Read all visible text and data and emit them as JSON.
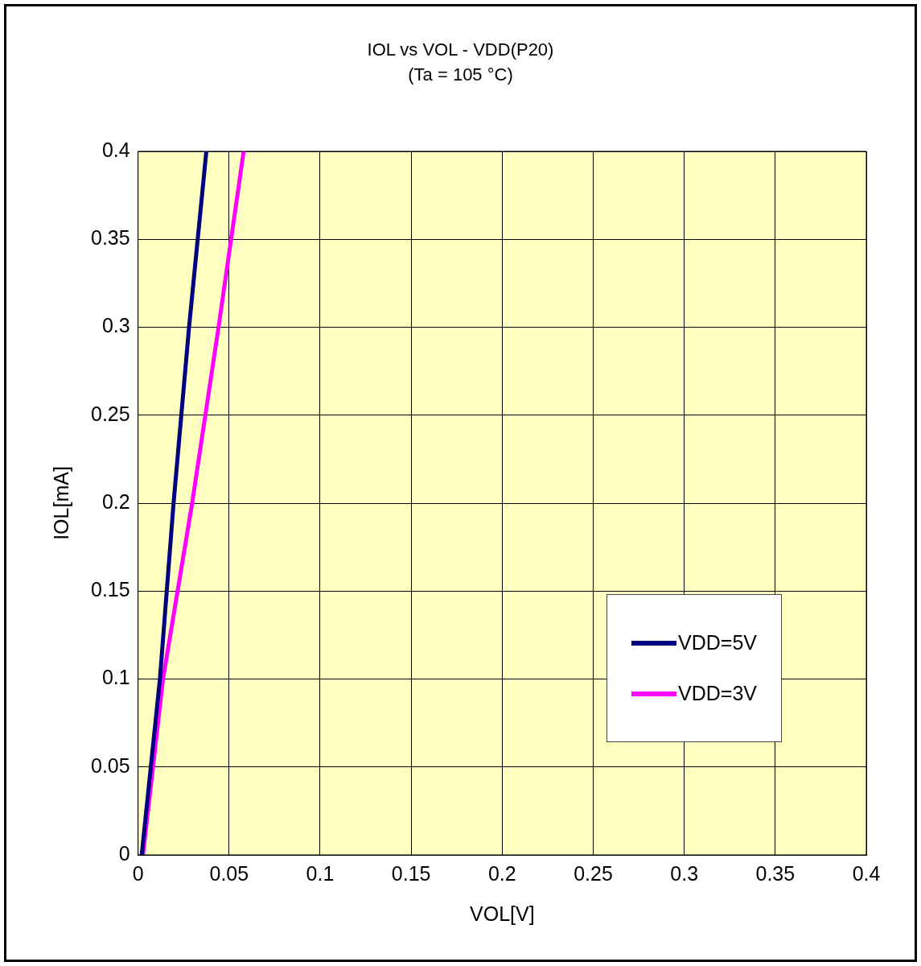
{
  "chart_data": {
    "type": "line",
    "title": "IOL vs VOL  - VDD(P20)",
    "subtitle": "(Ta = 105 °C)",
    "xlabel": "VOL[V]",
    "ylabel": "IOL[mA]",
    "xlim": [
      0,
      0.4
    ],
    "xticks": [
      0,
      0.05,
      0.1,
      0.15,
      0.2,
      0.25,
      0.3,
      0.35,
      0.4
    ],
    "ylim": [
      0,
      0.4
    ],
    "yticks": [
      0,
      0.05,
      0.1,
      0.15,
      0.2,
      0.25,
      0.3,
      0.35,
      0.4
    ],
    "grid": true,
    "legend": "bottom right",
    "marker": "none",
    "line_style": "solid",
    "series": [
      {
        "name": "VDD=5V",
        "color": "#000080",
        "x": [
          0.002,
          0.012,
          0.0195,
          0.028,
          0.0375
        ],
        "values": [
          0,
          0.1,
          0.2,
          0.3,
          0.4
        ]
      },
      {
        "name": "VDD=3V",
        "color": "#ff00ff",
        "x": [
          0.0027,
          0.0137,
          0.0297,
          0.0442,
          0.058
        ],
        "values": [
          0,
          0.1,
          0.2,
          0.3,
          0.4
        ]
      }
    ]
  }
}
